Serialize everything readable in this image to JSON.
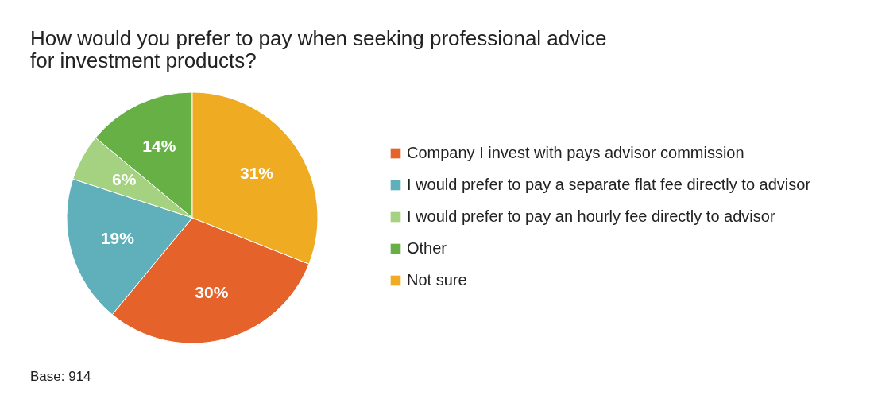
{
  "chart_data": {
    "type": "pie",
    "title": "How would you prefer to pay when seeking professional advice for investment products?",
    "categories": [
      "Company I invest with pays advisor commission",
      "I would prefer to pay a separate flat fee directly to advisor",
      "I would prefer to pay an hourly fee directly to advisor",
      "Other",
      "Not sure"
    ],
    "values": [
      30,
      19,
      6,
      14,
      31
    ],
    "colors": [
      "#e5632a",
      "#5fb0bb",
      "#a5d281",
      "#67b045",
      "#efab22"
    ],
    "value_labels": [
      "30%",
      "19%",
      "6%",
      "14%",
      "31%"
    ],
    "legend": "right",
    "annotations": [
      "Base: 914"
    ]
  }
}
